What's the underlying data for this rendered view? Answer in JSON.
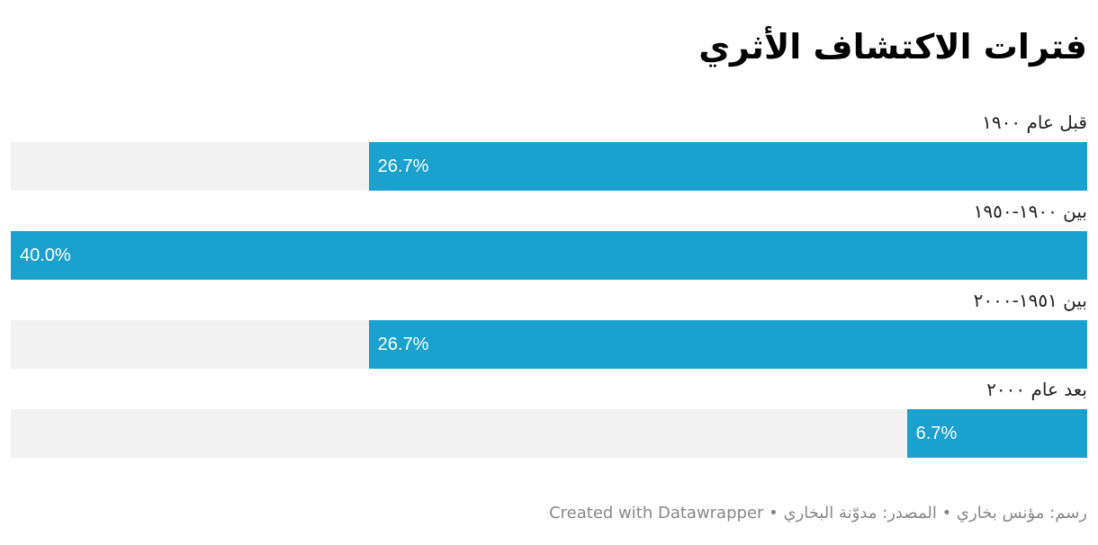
{
  "chart_data": {
    "type": "bar",
    "orientation": "horizontal",
    "direction": "rtl",
    "title": "فترات الاكتشاف الأثري",
    "categories": [
      "قبل عام ١٩٠٠",
      "بين ١٩٠٠-١٩٥٠",
      "بين ١٩٥١-٢٠٠٠",
      "بعد عام ٢٠٠٠"
    ],
    "values": [
      26.7,
      40.0,
      26.7,
      6.7
    ],
    "value_labels": [
      "26.7%",
      "40.0%",
      "26.7%",
      "6.7%"
    ],
    "color": "#1aa1cd",
    "xlim": [
      0,
      40
    ],
    "footer": "رسم: مؤنس بخاري • المصدر: مدوّنة البخاري • Created with Datawrapper"
  }
}
